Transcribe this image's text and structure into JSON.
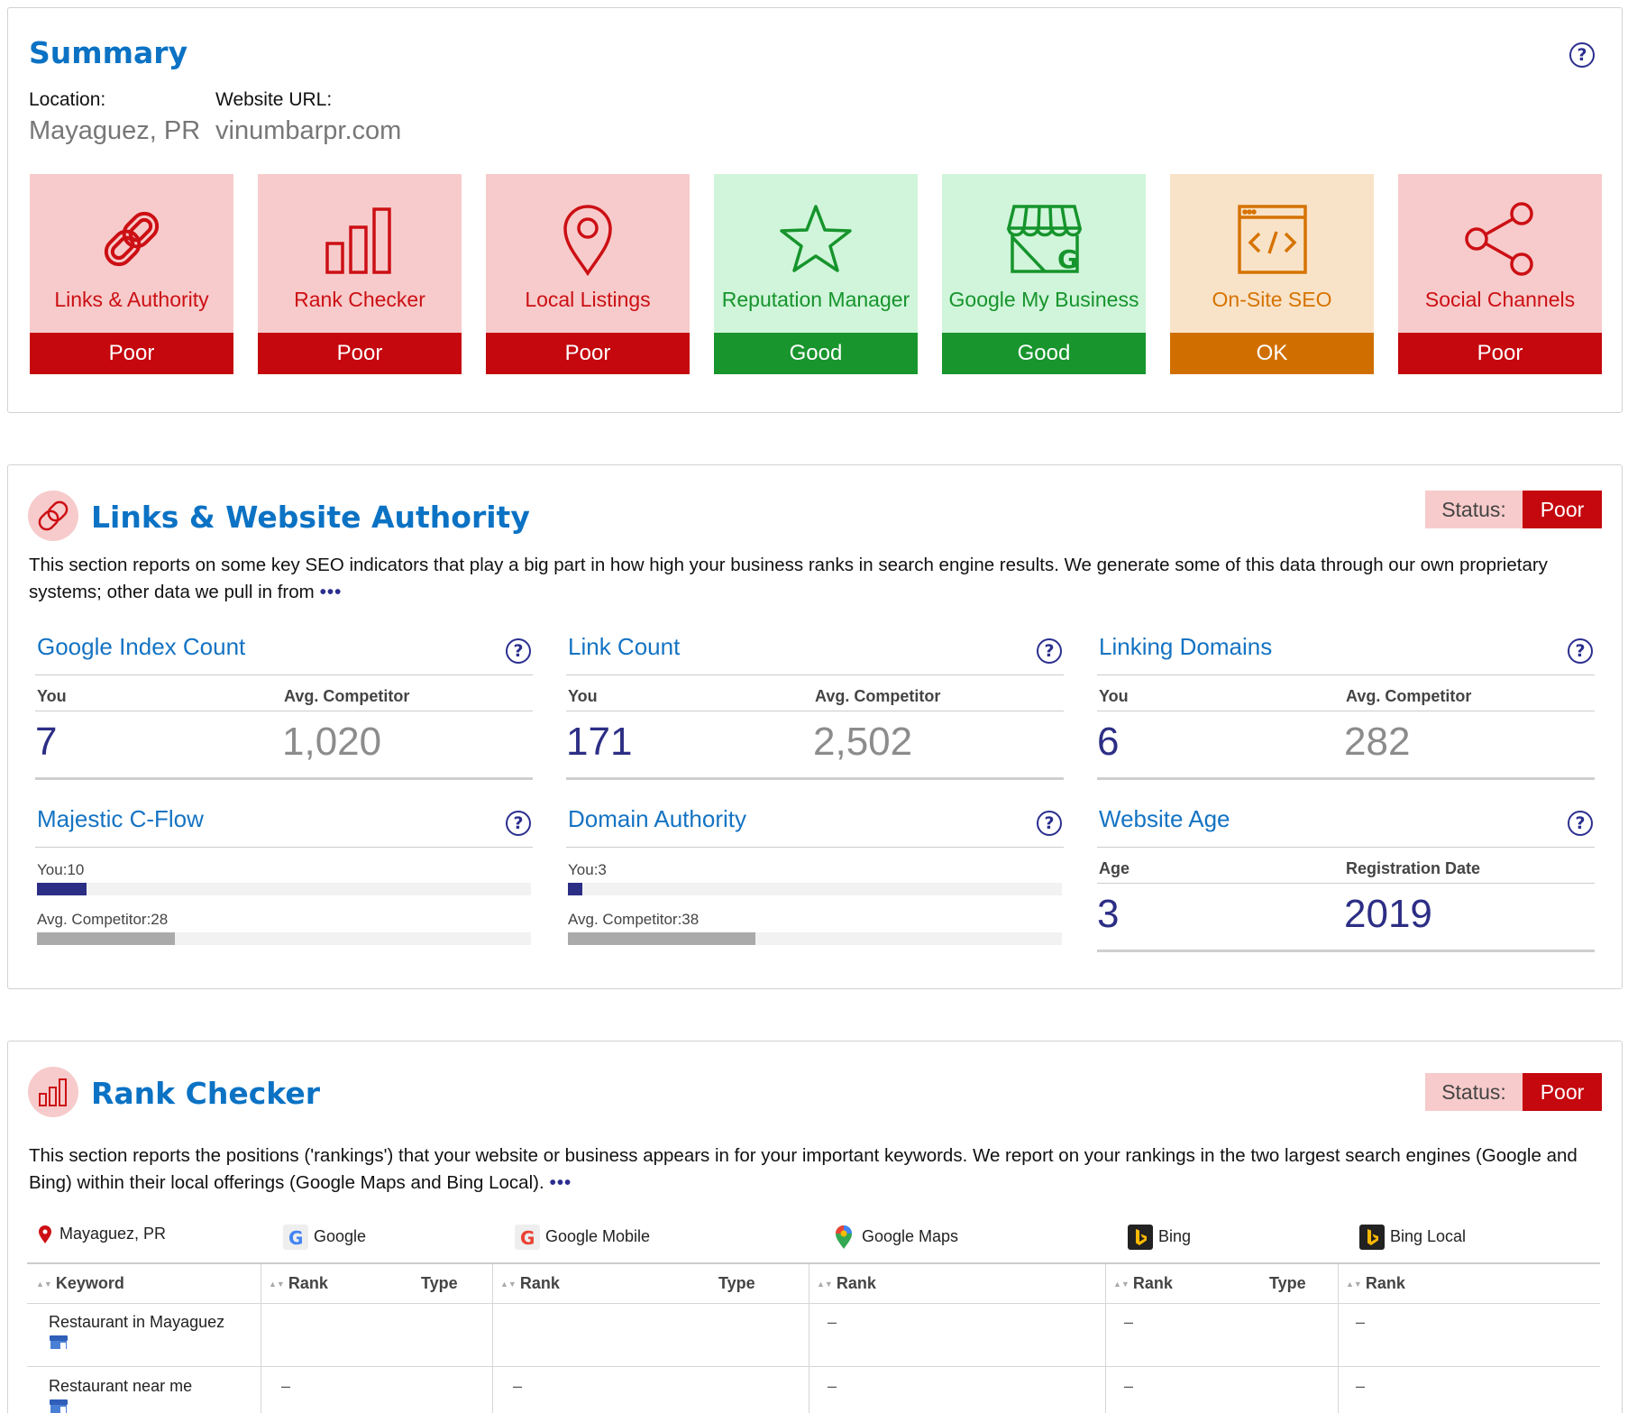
{
  "summary": {
    "title": "Summary",
    "location_label": "Location:",
    "location_value": "Mayaguez, PR",
    "website_label": "Website URL:",
    "website_value": "vinumbarpr.com",
    "help": "?",
    "tiles": [
      {
        "label": "Links & Authority",
        "status": "Poor",
        "icon": "link-icon"
      },
      {
        "label": "Rank Checker",
        "status": "Poor",
        "icon": "bar-chart-icon"
      },
      {
        "label": "Local Listings",
        "status": "Poor",
        "icon": "map-pin-icon"
      },
      {
        "label": "Reputation Manager",
        "status": "Good",
        "icon": "star-icon"
      },
      {
        "label": "Google My Business",
        "status": "Good",
        "icon": "storefront-icon"
      },
      {
        "label": "On-Site SEO",
        "status": "OK",
        "icon": "code-window-icon"
      },
      {
        "label": "Social Channels",
        "status": "Poor",
        "icon": "share-icon"
      }
    ]
  },
  "links": {
    "title": "Links & Website Authority",
    "status_label": "Status:",
    "status_value": "Poor",
    "description": "This section reports on some key SEO indicators that play a big part in how high your business ranks in search engine results. We generate some of this data through our own proprietary systems; other data we pull in from",
    "more": "•••",
    "metrics": [
      {
        "title": "Google Index Count",
        "you_label": "You",
        "avg_label": "Avg. Competitor",
        "you": "7",
        "avg": "1,020"
      },
      {
        "title": "Link Count",
        "you_label": "You",
        "avg_label": "Avg. Competitor",
        "you": "171",
        "avg": "2,502"
      },
      {
        "title": "Linking Domains",
        "you_label": "You",
        "avg_label": "Avg. Competitor",
        "you": "6",
        "avg": "282"
      }
    ],
    "bars": [
      {
        "title": "Majestic C-Flow",
        "you_label": "You:10",
        "avg_label": "Avg. Competitor:28",
        "you": 10,
        "avg": 28,
        "scale_max": 100
      },
      {
        "title": "Domain Authority",
        "you_label": "You:3",
        "avg_label": "Avg. Competitor:38",
        "you": 3,
        "avg": 38,
        "scale_max": 100
      }
    ],
    "age": {
      "title": "Website Age",
      "age_label": "Age",
      "reg_label": "Registration Date",
      "age": "3",
      "reg": "2019"
    }
  },
  "rank": {
    "title": "Rank Checker",
    "status_label": "Status:",
    "status_value": "Poor",
    "description": "This section reports the positions ('rankings') that your website or business appears in for your important keywords. We report on your rankings in the two largest search engines (Google and Bing) within their local offerings (Google Maps and Bing Local).",
    "more": "•••",
    "location": "Mayaguez, PR",
    "engines": [
      "Google",
      "Google Mobile",
      "Google Maps",
      "Bing",
      "Bing Local"
    ],
    "headers": {
      "keyword": "Keyword",
      "rank": "Rank",
      "type": "Type"
    },
    "rows": [
      {
        "keyword": "Restaurant in Mayaguez",
        "cells": [
          "",
          "",
          "",
          "",
          "–",
          "–",
          "",
          "–"
        ]
      },
      {
        "keyword": "Restaurant near me",
        "cells": [
          "–",
          "",
          "–",
          "",
          "–",
          "–",
          "",
          "–"
        ]
      }
    ]
  },
  "colors": {
    "poor": "#c5070e",
    "good": "#18952d",
    "ok": "#d06f00",
    "title_blue": "#0b72c4",
    "navy": "#2c2e85"
  }
}
